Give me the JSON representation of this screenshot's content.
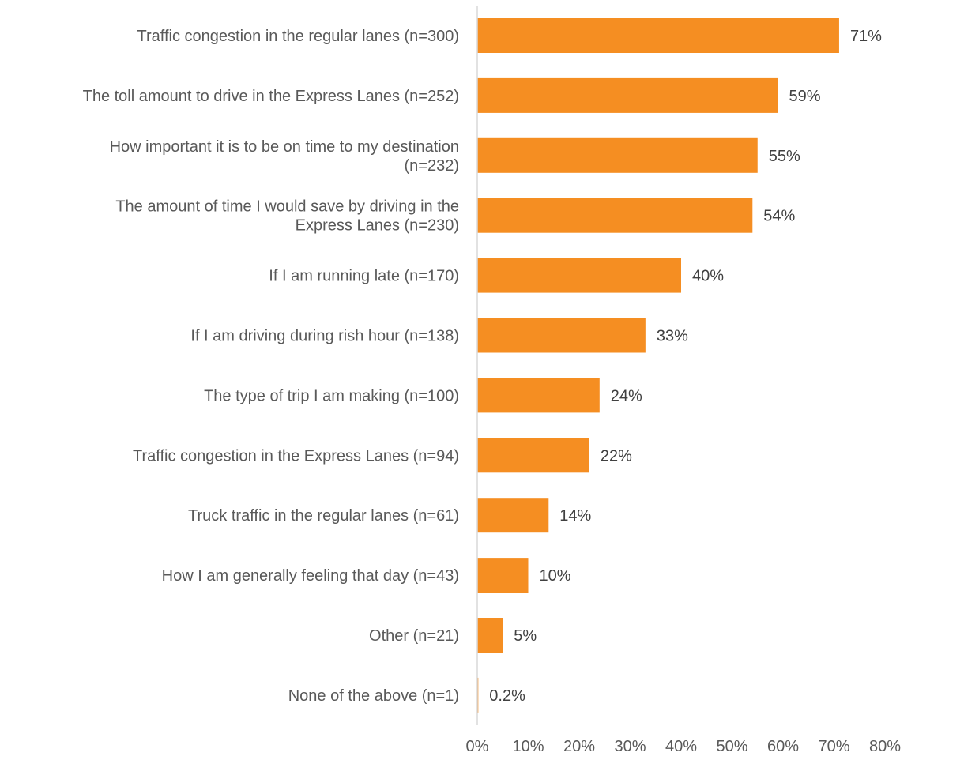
{
  "chart_data": {
    "type": "bar",
    "orientation": "horizontal",
    "title": "",
    "xlabel": "",
    "ylabel": "",
    "categories": [
      [
        "Traffic congestion in the regular lanes (n=300)"
      ],
      [
        "The toll amount to drive in the Express Lanes (n=252)"
      ],
      [
        "How important it is to be on time to my destination",
        "(n=232)"
      ],
      [
        "The amount of time I would save by driving in the",
        "Express Lanes (n=230)"
      ],
      [
        "If I am running late (n=170)"
      ],
      [
        "If I am driving during rish hour (n=138)"
      ],
      [
        "The type of trip I am making (n=100)"
      ],
      [
        "Traffic congestion in the Express Lanes (n=94)"
      ],
      [
        "Truck traffic in the regular lanes (n=61)"
      ],
      [
        "How I am generally feeling that day (n=43)"
      ],
      [
        "Other (n=21)"
      ],
      [
        "None of the above (n=1)"
      ]
    ],
    "values": [
      71,
      59,
      55,
      54,
      40,
      33,
      24,
      22,
      14,
      10,
      5,
      0.2
    ],
    "value_labels": [
      "71%",
      "59%",
      "55%",
      "54%",
      "40%",
      "33%",
      "24%",
      "22%",
      "14%",
      "10%",
      "5%",
      "0.2%"
    ],
    "xlim": [
      0,
      80
    ],
    "x_ticks": [
      0,
      10,
      20,
      30,
      40,
      50,
      60,
      70,
      80
    ],
    "x_tick_labels": [
      "0%",
      "10%",
      "20%",
      "30%",
      "40%",
      "50%",
      "60%",
      "70%",
      "80%"
    ],
    "bar_color": "#F58E22",
    "axis_color": "#D9D9D9",
    "grid": false,
    "legend": "none"
  }
}
